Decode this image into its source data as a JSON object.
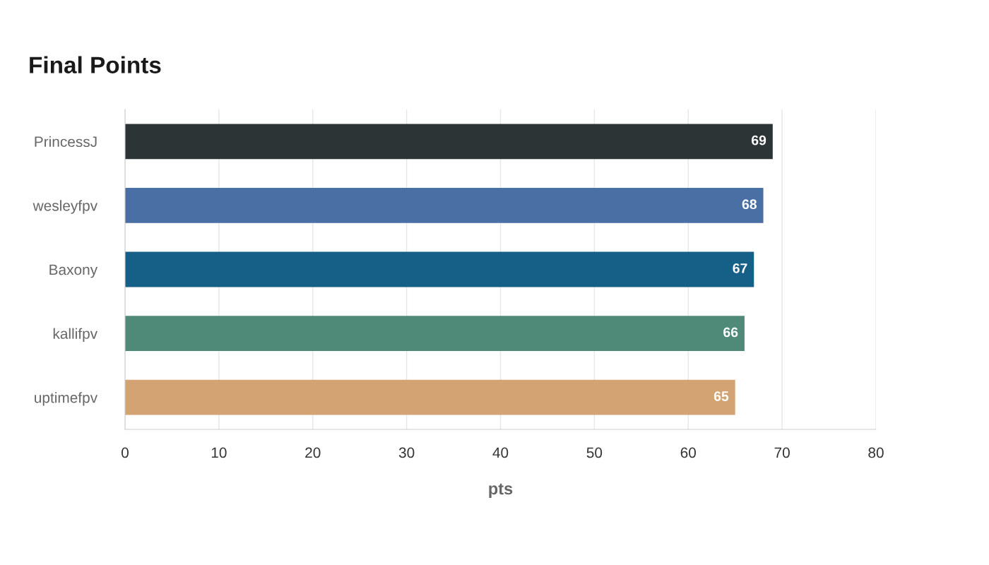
{
  "chart_data": {
    "type": "bar",
    "orientation": "horizontal",
    "title": "Final Points",
    "xlabel": "pts",
    "categories": [
      "PrincessJ",
      "wesleyfpv",
      "Baxony",
      "kallifpv",
      "uptimefpv"
    ],
    "values": [
      69,
      68,
      67,
      66,
      65
    ],
    "colors": [
      "#2d3436",
      "#4a6fa5",
      "#166088",
      "#4f8a78",
      "#d4a373"
    ],
    "xlim": [
      0,
      80
    ],
    "xticks": [
      0,
      10,
      20,
      30,
      40,
      50,
      60,
      70,
      80
    ],
    "grid": "x",
    "data_labels": true,
    "legend": false
  }
}
